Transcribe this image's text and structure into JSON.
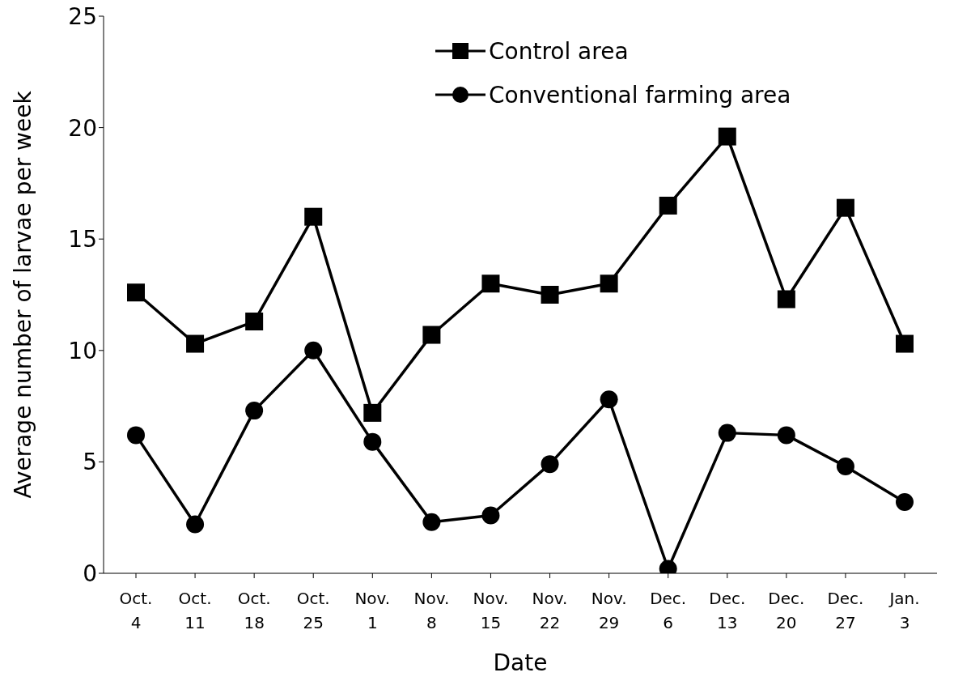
{
  "chart_data": {
    "type": "line",
    "xlabel": "Date",
    "ylabel": "Average number of larvae per week",
    "categories": [
      "Oct. 4",
      "Oct. 11",
      "Oct. 18",
      "Oct. 25",
      "Nov. 1",
      "Nov. 8",
      "Nov. 15",
      "Nov. 22",
      "Nov. 29",
      "Dec. 6",
      "Dec. 13",
      "Dec. 20",
      "Dec. 27",
      "Jan. 3"
    ],
    "series": [
      {
        "name": "Control area",
        "color": "#000000",
        "marker": "square",
        "values": [
          12.6,
          10.3,
          11.3,
          16.0,
          7.2,
          10.7,
          13.0,
          12.5,
          13.0,
          16.5,
          19.6,
          12.3,
          16.4,
          10.3
        ]
      },
      {
        "name": "Conventional farming area",
        "color": "#000000",
        "marker": "circle",
        "values": [
          6.2,
          2.2,
          7.3,
          10.0,
          5.9,
          2.3,
          2.6,
          4.9,
          7.8,
          0.2,
          6.3,
          6.2,
          4.8,
          3.2
        ]
      }
    ],
    "ylim": [
      0,
      25
    ],
    "yticks": [
      0,
      5,
      10,
      15,
      20,
      25
    ],
    "grid": false,
    "legend": "top right",
    "line_style": "solid"
  }
}
